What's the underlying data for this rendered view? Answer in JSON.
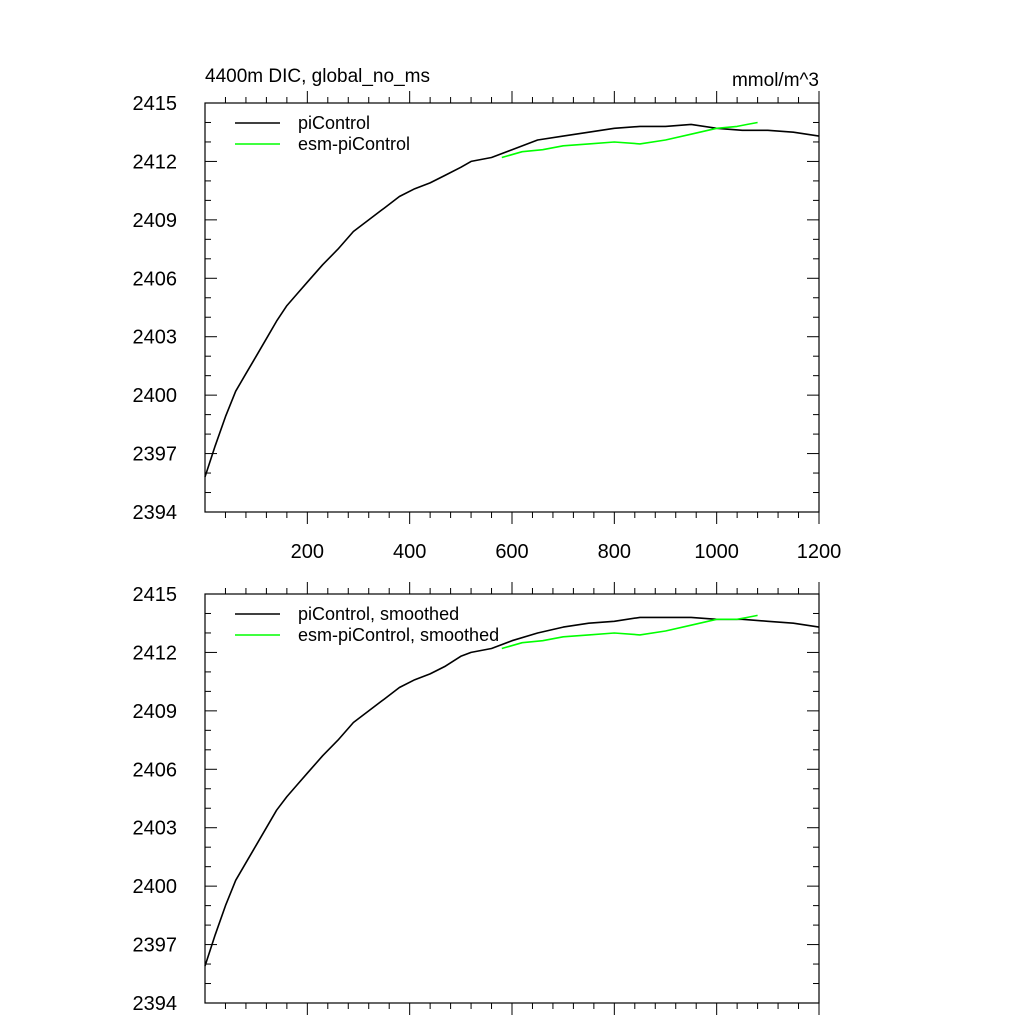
{
  "chart_data": [
    {
      "type": "line",
      "title": "4400m DIC, global_no_ms",
      "units": "mmol/m^3",
      "xlabel": "",
      "ylabel": "",
      "xlim": [
        0,
        1200
      ],
      "ylim": [
        2394,
        2415
      ],
      "x_ticks": [
        200,
        400,
        600,
        800,
        1000,
        1200
      ],
      "x_ticks_labeled": true,
      "y_ticks": [
        2394,
        2397,
        2400,
        2403,
        2406,
        2409,
        2412,
        2415
      ],
      "grid": false,
      "legend_position": "top-left",
      "series": [
        {
          "name": "piControl",
          "color": "#000000",
          "x": [
            0,
            20,
            40,
            60,
            80,
            100,
            120,
            140,
            160,
            180,
            200,
            230,
            260,
            290,
            320,
            350,
            380,
            410,
            440,
            470,
            500,
            520,
            560,
            600,
            650,
            700,
            750,
            800,
            850,
            900,
            950,
            1000,
            1050,
            1100,
            1150,
            1200
          ],
          "y": [
            2395.8,
            2397.4,
            2398.9,
            2400.2,
            2401.1,
            2402.0,
            2402.9,
            2403.8,
            2404.6,
            2405.2,
            2405.8,
            2406.7,
            2407.5,
            2408.4,
            2409.0,
            2409.6,
            2410.2,
            2410.6,
            2410.9,
            2411.3,
            2411.7,
            2412.0,
            2412.2,
            2412.6,
            2413.1,
            2413.3,
            2413.5,
            2413.7,
            2413.8,
            2413.8,
            2413.9,
            2413.7,
            2413.6,
            2413.6,
            2413.5,
            2413.3
          ]
        },
        {
          "name": "esm-piControl",
          "color": "#00ff00",
          "x": [
            580,
            620,
            660,
            700,
            750,
            800,
            850,
            900,
            950,
            1000,
            1040,
            1060,
            1080
          ],
          "y": [
            2412.2,
            2412.5,
            2412.6,
            2412.8,
            2412.9,
            2413.0,
            2412.9,
            2413.1,
            2413.4,
            2413.7,
            2413.8,
            2413.9,
            2414.0
          ]
        }
      ]
    },
    {
      "type": "line",
      "title": "",
      "xlabel": "",
      "ylabel": "",
      "xlim": [
        0,
        1200
      ],
      "ylim": [
        2394,
        2415
      ],
      "x_ticks": [
        200,
        400,
        600,
        800,
        1000,
        1200
      ],
      "x_ticks_labeled": false,
      "y_ticks": [
        2394,
        2397,
        2400,
        2403,
        2406,
        2409,
        2412,
        2415
      ],
      "grid": false,
      "legend_position": "top-left",
      "series": [
        {
          "name": "piControl, smoothed",
          "color": "#000000",
          "x": [
            0,
            20,
            40,
            60,
            80,
            100,
            120,
            140,
            160,
            180,
            200,
            230,
            260,
            290,
            320,
            350,
            380,
            410,
            440,
            470,
            500,
            520,
            560,
            600,
            650,
            700,
            750,
            800,
            850,
            900,
            950,
            1000,
            1050,
            1100,
            1150,
            1200
          ],
          "y": [
            2395.9,
            2397.5,
            2399.0,
            2400.3,
            2401.2,
            2402.1,
            2403.0,
            2403.9,
            2404.6,
            2405.2,
            2405.8,
            2406.7,
            2407.5,
            2408.4,
            2409.0,
            2409.6,
            2410.2,
            2410.6,
            2410.9,
            2411.3,
            2411.8,
            2412.0,
            2412.2,
            2412.6,
            2413.0,
            2413.3,
            2413.5,
            2413.6,
            2413.8,
            2413.8,
            2413.8,
            2413.7,
            2413.7,
            2413.6,
            2413.5,
            2413.3
          ]
        },
        {
          "name": "esm-piControl, smoothed",
          "color": "#00ff00",
          "x": [
            580,
            620,
            660,
            700,
            750,
            800,
            850,
            900,
            950,
            1000,
            1040,
            1060,
            1080
          ],
          "y": [
            2412.2,
            2412.5,
            2412.6,
            2412.8,
            2412.9,
            2413.0,
            2412.9,
            2413.1,
            2413.4,
            2413.7,
            2413.7,
            2413.8,
            2413.9
          ]
        }
      ]
    }
  ]
}
